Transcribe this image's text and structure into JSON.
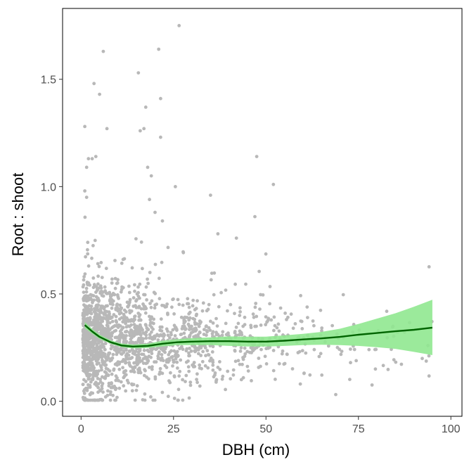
{
  "chart_data": {
    "type": "scatter",
    "title": "",
    "xlabel": "DBH (cm)",
    "ylabel": "Root : shoot",
    "xlim": [
      -5,
      103
    ],
    "ylim": [
      -0.07,
      1.83
    ],
    "x_ticks": [
      0,
      25,
      50,
      75,
      100
    ],
    "x_tick_labels": [
      "0",
      "25",
      "50",
      "75",
      "100"
    ],
    "y_ticks": [
      0.0,
      0.5,
      1.0,
      1.5
    ],
    "y_tick_labels": [
      "0.0",
      "0.5",
      "1.0",
      "1.5"
    ],
    "grid": false,
    "legend": "none",
    "colors": {
      "points": "#b8b8b8",
      "fit_line": "#006400",
      "ribbon": "#90e890"
    },
    "outlier_points": {
      "x": [
        26.5,
        6,
        21,
        3.5,
        5,
        15.5,
        17.5,
        21.5,
        16,
        17,
        21.5,
        1,
        7,
        3,
        4,
        2,
        1.5,
        47.5,
        18,
        19,
        52,
        1,
        1.5,
        25.5,
        35,
        18.5,
        20,
        47,
        22,
        37,
        42
      ],
      "y": [
        1.75,
        1.63,
        1.64,
        1.48,
        1.43,
        1.53,
        1.37,
        1.41,
        1.26,
        1.27,
        1.23,
        1.28,
        1.27,
        1.13,
        1.14,
        1.13,
        1.09,
        1.14,
        1.09,
        1.05,
        1.01,
        0.98,
        0.95,
        1.0,
        0.96,
        0.94,
        0.88,
        0.86,
        0.84,
        0.78,
        0.76
      ]
    },
    "dense_region": {
      "n_points": 1850,
      "x_range": [
        0.5,
        95
      ],
      "y_range": [
        0.0,
        0.9
      ],
      "note_count_by_x": [
        [
          0,
          5,
          600
        ],
        [
          5,
          15,
          500
        ],
        [
          15,
          30,
          380
        ],
        [
          30,
          50,
          240
        ],
        [
          50,
          70,
          90
        ],
        [
          70,
          95,
          40
        ]
      ]
    },
    "smooth_fit": {
      "x": [
        1,
        3,
        5,
        8,
        11,
        14,
        18,
        22,
        26,
        30,
        35,
        40,
        45,
        50,
        55,
        60,
        65,
        70,
        75,
        80,
        85,
        90,
        95
      ],
      "y": [
        0.355,
        0.325,
        0.3,
        0.275,
        0.26,
        0.255,
        0.258,
        0.268,
        0.275,
        0.278,
        0.28,
        0.28,
        0.278,
        0.278,
        0.282,
        0.288,
        0.293,
        0.3,
        0.31,
        0.318,
        0.326,
        0.333,
        0.343
      ],
      "lower": [
        0.34,
        0.315,
        0.29,
        0.268,
        0.252,
        0.246,
        0.248,
        0.255,
        0.262,
        0.262,
        0.262,
        0.258,
        0.255,
        0.255,
        0.258,
        0.262,
        0.263,
        0.262,
        0.258,
        0.252,
        0.244,
        0.23,
        0.215
      ],
      "upper": [
        0.37,
        0.337,
        0.311,
        0.284,
        0.269,
        0.264,
        0.268,
        0.282,
        0.289,
        0.294,
        0.298,
        0.302,
        0.301,
        0.301,
        0.307,
        0.314,
        0.323,
        0.338,
        0.36,
        0.385,
        0.41,
        0.44,
        0.473
      ]
    }
  }
}
